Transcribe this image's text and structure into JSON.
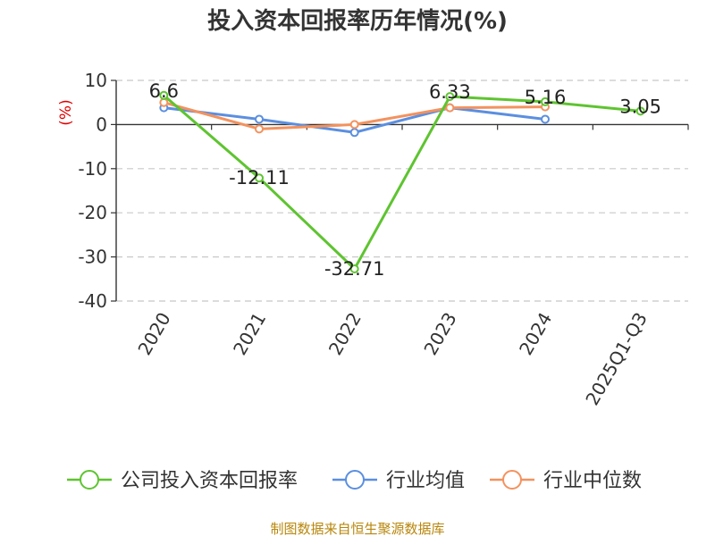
{
  "chart_data": {
    "type": "line",
    "title": "投入资本回报率历年情况(%)",
    "ylabel": "(%)",
    "xlabel": "",
    "categories": [
      "2020",
      "2021",
      "2022",
      "2023",
      "2024",
      "2025Q1-Q3"
    ],
    "ylim": [
      -40,
      10
    ],
    "yticks": [
      10,
      0,
      -10,
      -20,
      -30,
      -40
    ],
    "grid": true,
    "legend_position": "bottom",
    "series": [
      {
        "name": "公司投入资本回报率",
        "color": "#5ec430",
        "values": [
          6.6,
          -12.11,
          -32.71,
          6.33,
          5.16,
          3.05
        ],
        "labels": [
          "6.6",
          "-12.11",
          "-32.71",
          "6.33",
          "5.16",
          "3.05"
        ]
      },
      {
        "name": "行业均值",
        "color": "#5b8fe0",
        "values": [
          3.8,
          1.2,
          -1.8,
          3.8,
          1.2,
          null
        ]
      },
      {
        "name": "行业中位数",
        "color": "#f3925e",
        "values": [
          5.0,
          -1.0,
          0.0,
          3.8,
          4.0,
          null
        ]
      }
    ]
  },
  "source": "制图数据来自恒生聚源数据库"
}
